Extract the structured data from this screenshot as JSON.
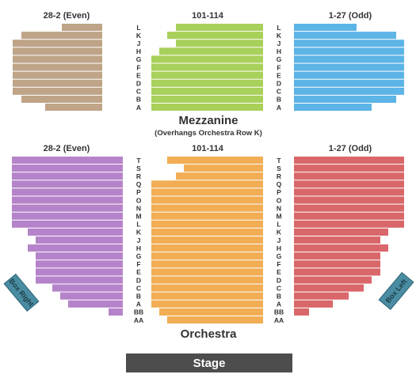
{
  "mezzanine": {
    "left_label": "28-2 (Even)",
    "center_label": "101-114",
    "right_label": "1-27 (Odd)",
    "title": "Mezzanine",
    "note": "(Overhangs Orchestra Row K)",
    "rows": [
      "L",
      "K",
      "J",
      "H",
      "G",
      "F",
      "E",
      "D",
      "C",
      "B",
      "A"
    ],
    "colors": {
      "left": "#bfa488",
      "center": "#a9d05a",
      "right": "#5db4e6"
    }
  },
  "orchestra": {
    "left_label": "28-2 (Even)",
    "center_label": "101-114",
    "right_label": "1-27 (Odd)",
    "title": "Orchestra",
    "rows": [
      "T",
      "S",
      "R",
      "Q",
      "P",
      "O",
      "N",
      "M",
      "L",
      "K",
      "J",
      "H",
      "G",
      "F",
      "E",
      "D",
      "C",
      "B",
      "A",
      "BB",
      "AA"
    ],
    "colors": {
      "left": "#b583c9",
      "center": "#f2ad55",
      "right": "#d9676a"
    }
  },
  "stage": {
    "label": "Stage"
  },
  "boxes": {
    "right": "Box Right",
    "left": "Box Left"
  }
}
